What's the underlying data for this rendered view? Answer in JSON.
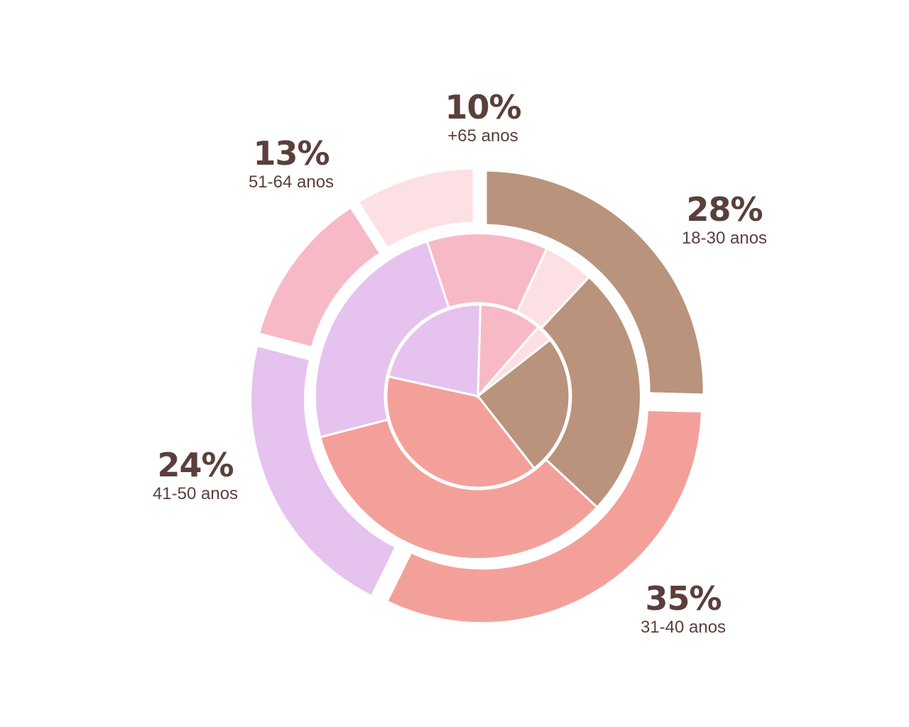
{
  "chart_data": {
    "type": "pie",
    "style": "nested-donut",
    "rings": [
      {
        "ring": "outer",
        "slices": [
          {
            "category": "18-30 anos",
            "value": 28,
            "label": "28%",
            "color": "#b9937c"
          },
          {
            "category": "31-40 anos",
            "value": 35,
            "label": "35%",
            "color": "#f4a09a"
          },
          {
            "category": "41-50 anos",
            "value": 24,
            "label": "24%",
            "color": "#e6c2ee"
          },
          {
            "category": "51-64 anos",
            "value": 13,
            "label": "13%",
            "color": "#f8b9c6"
          },
          {
            "category": "+65 anos",
            "value": 10,
            "label": "10%",
            "color": "#fde0e3"
          }
        ]
      },
      {
        "ring": "middle",
        "slices": [
          {
            "category": "18-30 anos",
            "value": 25,
            "color": "#b9937c"
          },
          {
            "category": "31-40 anos",
            "value": 34,
            "color": "#f4a09a"
          },
          {
            "category": "41-50 anos",
            "value": 24,
            "color": "#e6c2ee"
          },
          {
            "category": "51-64 anos",
            "value": 12,
            "color": "#f8b9c6"
          },
          {
            "category": "+65 anos",
            "value": 5,
            "color": "#fde0e3"
          }
        ]
      },
      {
        "ring": "inner",
        "slices": [
          {
            "category": "18-30 anos",
            "value": 25,
            "color": "#b9937c"
          },
          {
            "category": "31-40 anos",
            "value": 39,
            "color": "#f4a09a"
          },
          {
            "category": "41-50 anos",
            "value": 22,
            "color": "#e6c2ee"
          },
          {
            "category": "51-64 anos",
            "value": 11,
            "color": "#f8b9c6"
          },
          {
            "category": "+65 anos",
            "value": 3,
            "color": "#fde0e3"
          }
        ]
      }
    ]
  },
  "labels": [
    {
      "pct": "28%",
      "cat": "18-30 anos"
    },
    {
      "pct": "35%",
      "cat": "31-40 anos"
    },
    {
      "pct": "24%",
      "cat": "41-50 anos"
    },
    {
      "pct": "13%",
      "cat": "51-64 anos"
    },
    {
      "pct": "10%",
      "cat": "+65 anos"
    }
  ],
  "colors": {
    "background": "#ffffff",
    "text": "#5a3f3b",
    "separator": "#ffffff"
  }
}
